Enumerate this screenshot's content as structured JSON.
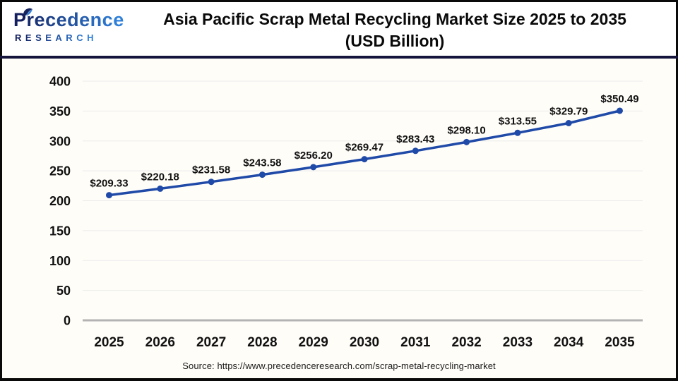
{
  "logo": {
    "brand": "Precedence",
    "brand_sub": "RESEARCH",
    "color_dark": "#131f5e",
    "color_light": "#2f7fd9"
  },
  "header": {
    "title_line1": "Asia Pacific Scrap Metal Recycling Market Size 2025 to 2035",
    "title_line2": "(USD Billion)"
  },
  "chart_data": {
    "type": "line",
    "title": "Asia Pacific Scrap Metal Recycling Market Size 2025 to 2035 (USD Billion)",
    "categories": [
      "2025",
      "2026",
      "2027",
      "2028",
      "2029",
      "2030",
      "2031",
      "2032",
      "2033",
      "2034",
      "2035"
    ],
    "values": [
      209.33,
      220.18,
      231.58,
      243.58,
      256.2,
      269.47,
      283.43,
      298.1,
      313.55,
      329.79,
      350.49
    ],
    "data_labels": [
      "$209.33",
      "$220.18",
      "$231.58",
      "$243.58",
      "$256.20",
      "$269.47",
      "$283.43",
      "$298.10",
      "$313.55",
      "$329.79",
      "$350.49"
    ],
    "xlabel": "",
    "ylabel": "",
    "ylim": [
      0,
      400
    ],
    "y_ticks": [
      0,
      50,
      100,
      150,
      200,
      250,
      300,
      350,
      400
    ],
    "grid": true,
    "legend": false,
    "line_color": "#1F4AA8",
    "marker_color": "#1F4AA8",
    "label_color": "#111111",
    "tick_color": "#111111",
    "gridline_color": "#EBEBEB",
    "axis_line_color": "#B3B3B3"
  },
  "footer": {
    "source": "Source: https://www.precedenceresearch.com/scrap-metal-recycling-market"
  }
}
